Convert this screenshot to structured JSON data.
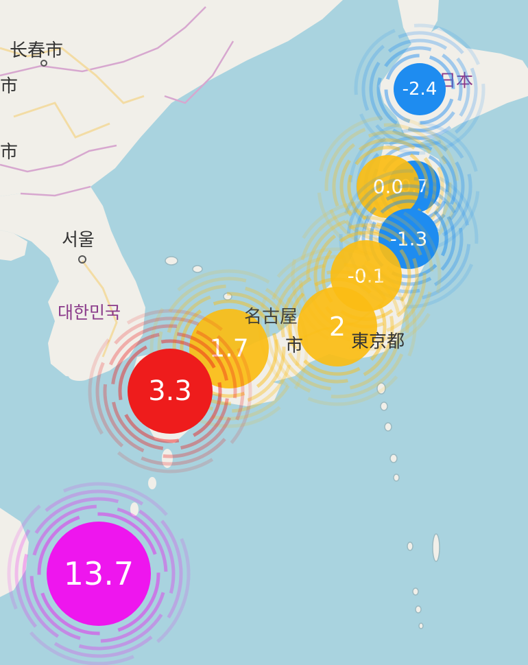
{
  "colors": {
    "sea": "#a9d3df",
    "land": "#f1efe9",
    "border": "#d7a7cf",
    "road": "#f3dca4"
  },
  "labels": {
    "changchun": "长春市",
    "left_edge_1": "市",
    "left_edge_2": "市",
    "seoul": "서울",
    "korea": "대한민국",
    "japan": "日本",
    "nagoya_top": "名古屋",
    "nagoya_bottom": "市",
    "tokyo": "東京都"
  },
  "markers": [
    {
      "id": "hokkaido",
      "value": "-2.4",
      "color": "#1e8cf0",
      "level": "low"
    },
    {
      "id": "tohoku-blue",
      "value": "0.7",
      "color": "#1e8cf0",
      "level": "low"
    },
    {
      "id": "tohoku-yellow",
      "value": "0.0",
      "color": "#fbbd14",
      "level": "mid"
    },
    {
      "id": "miyagi",
      "value": "-1.3",
      "color": "#1e8cf0",
      "level": "low"
    },
    {
      "id": "kanto-north",
      "value": "-0.1",
      "color": "#fbbd14",
      "level": "mid"
    },
    {
      "id": "tokyo",
      "value": "2",
      "color": "#fbbd14",
      "level": "mid"
    },
    {
      "id": "osaka",
      "value": "1.7",
      "color": "#fbbd14",
      "level": "mid"
    },
    {
      "id": "kyushu",
      "value": "3.3",
      "color": "#ee1c1c",
      "level": "high"
    },
    {
      "id": "okinawa",
      "value": "13.7",
      "color": "#ee16ee",
      "level": "very-high"
    }
  ]
}
